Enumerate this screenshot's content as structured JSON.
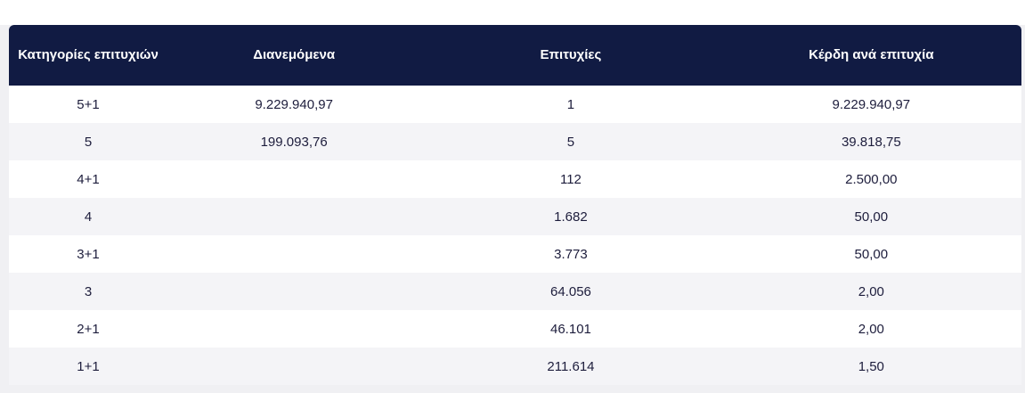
{
  "colors": {
    "header_bg": "#111b43",
    "row_alt": "#f4f4f7",
    "body_text": "#1d1d3c",
    "page_bg": "#f0f0f3"
  },
  "table": {
    "columns": [
      {
        "label": "Κατηγορίες επιτυχιών"
      },
      {
        "label": "Διανεμόμενα"
      },
      {
        "label": "Επιτυχίες"
      },
      {
        "label": "Κέρδη ανά επιτυχία"
      }
    ],
    "rows": [
      {
        "category": "5+1",
        "distributed": "9.229.940,97",
        "winners": "1",
        "winnings": "9.229.940,97"
      },
      {
        "category": "5",
        "distributed": "199.093,76",
        "winners": "5",
        "winnings": "39.818,75"
      },
      {
        "category": "4+1",
        "distributed": "",
        "winners": "112",
        "winnings": "2.500,00"
      },
      {
        "category": "4",
        "distributed": "",
        "winners": "1.682",
        "winnings": "50,00"
      },
      {
        "category": "3+1",
        "distributed": "",
        "winners": "3.773",
        "winnings": "50,00"
      },
      {
        "category": "3",
        "distributed": "",
        "winners": "64.056",
        "winnings": "2,00"
      },
      {
        "category": "2+1",
        "distributed": "",
        "winners": "46.101",
        "winnings": "2,00"
      },
      {
        "category": "1+1",
        "distributed": "",
        "winners": "211.614",
        "winnings": "1,50"
      }
    ]
  }
}
